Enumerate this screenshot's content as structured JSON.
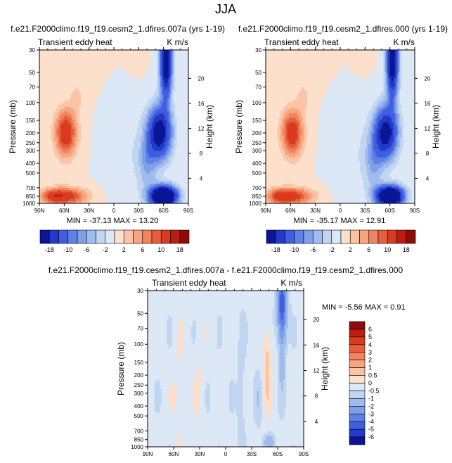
{
  "title": "JJA",
  "panels": [
    {
      "heading": "f.e21.F2000climo.f19_f19.cesm2_1.dfires.007a (yrs 1-19)",
      "left_label": "Transient eddy heat",
      "units": "K m/s",
      "stats": "MIN = -37.13   MAX =  13.20"
    },
    {
      "heading": "f.e21.F2000climo.f19_f19.cesm2_1.dfires.000 (yrs 1-19)",
      "left_label": "Transient eddy heat",
      "units": "K m/s",
      "stats": "MIN = -35.17   MAX =  12.91"
    },
    {
      "heading": "f.e21.F2000climo.f19_f19.cesm2_1.dfires.007a - f.e21.F2000climo.f19_f19.cesm2_1.dfires.000",
      "left_label": "Transient eddy heat",
      "units": "K m/s",
      "stats": "MIN =  -5.56   MAX =   0.91"
    }
  ],
  "chart_data": [
    {
      "type": "heatmap",
      "xlabel": "",
      "ylabel": "Pressure (mb)",
      "y2label": "Height (km)",
      "x_ticks": [
        "90N",
        "60N",
        "30N",
        "0",
        "30S",
        "60S",
        "90S"
      ],
      "y_ticks": [
        30,
        50,
        70,
        100,
        150,
        200,
        250,
        300,
        400,
        500,
        700,
        850,
        1000
      ],
      "y2_ticks": [
        20,
        16,
        12,
        8,
        4
      ],
      "y_scale": "log",
      "colorbar_levels": [
        -18,
        -14,
        -10,
        -8,
        -6,
        -4,
        -2,
        0,
        2,
        4,
        6,
        8,
        10,
        14,
        18
      ],
      "colorbar_labels": [
        "-18",
        "-10",
        "-6",
        "-2",
        "2",
        "6",
        "10",
        "18"
      ],
      "min": -37.13,
      "max": 13.2
    },
    {
      "type": "heatmap",
      "xlabel": "",
      "ylabel": "Pressure (mb)",
      "y2label": "Height (km)",
      "x_ticks": [
        "90N",
        "60N",
        "30N",
        "0",
        "30S",
        "60S",
        "90S"
      ],
      "y_ticks": [
        30,
        50,
        70,
        100,
        150,
        200,
        250,
        300,
        400,
        500,
        700,
        850,
        1000
      ],
      "y2_ticks": [
        20,
        16,
        12,
        8,
        4
      ],
      "y_scale": "log",
      "colorbar_levels": [
        -18,
        -14,
        -10,
        -8,
        -6,
        -4,
        -2,
        0,
        2,
        4,
        6,
        8,
        10,
        14,
        18
      ],
      "colorbar_labels": [
        "-18",
        "-10",
        "-6",
        "-2",
        "2",
        "6",
        "10",
        "18"
      ],
      "min": -35.17,
      "max": 12.91
    },
    {
      "type": "heatmap",
      "xlabel": "",
      "ylabel": "Pressure (mb)",
      "y2label": "Height (km)",
      "x_ticks": [
        "90N",
        "60N",
        "30N",
        "0",
        "30S",
        "60S",
        "90S"
      ],
      "y_ticks": [
        30,
        50,
        70,
        100,
        150,
        200,
        250,
        300,
        400,
        500,
        700,
        850,
        1000
      ],
      "y2_ticks": [
        20,
        16,
        12,
        8,
        4
      ],
      "y_scale": "log",
      "colorbar_levels": [
        -6,
        -5,
        -4,
        -3,
        -2,
        -1,
        -0.5,
        0,
        0.5,
        1,
        2,
        3,
        4,
        5,
        6
      ],
      "colorbar_labels": [
        "6",
        "5",
        "4",
        "3",
        "2",
        "1",
        "0.5",
        "0",
        "-0.5",
        "-1",
        "-2",
        "-3",
        "-4",
        "-5",
        "-6"
      ],
      "min": -5.56,
      "max": 0.91
    }
  ],
  "colors": {
    "pos": [
      "#fde0cc",
      "#fbc4a6",
      "#f7a47f",
      "#f08360",
      "#e65e3c",
      "#d93b1e",
      "#bb1d10",
      "#8f0b0b"
    ],
    "neutral": "#ffffff",
    "neg": [
      "#dce8f6",
      "#c1d5f1",
      "#9fbcec",
      "#7e9fe9",
      "#5f81e6",
      "#3f5ee2",
      "#2339c8",
      "#0a1696"
    ]
  }
}
